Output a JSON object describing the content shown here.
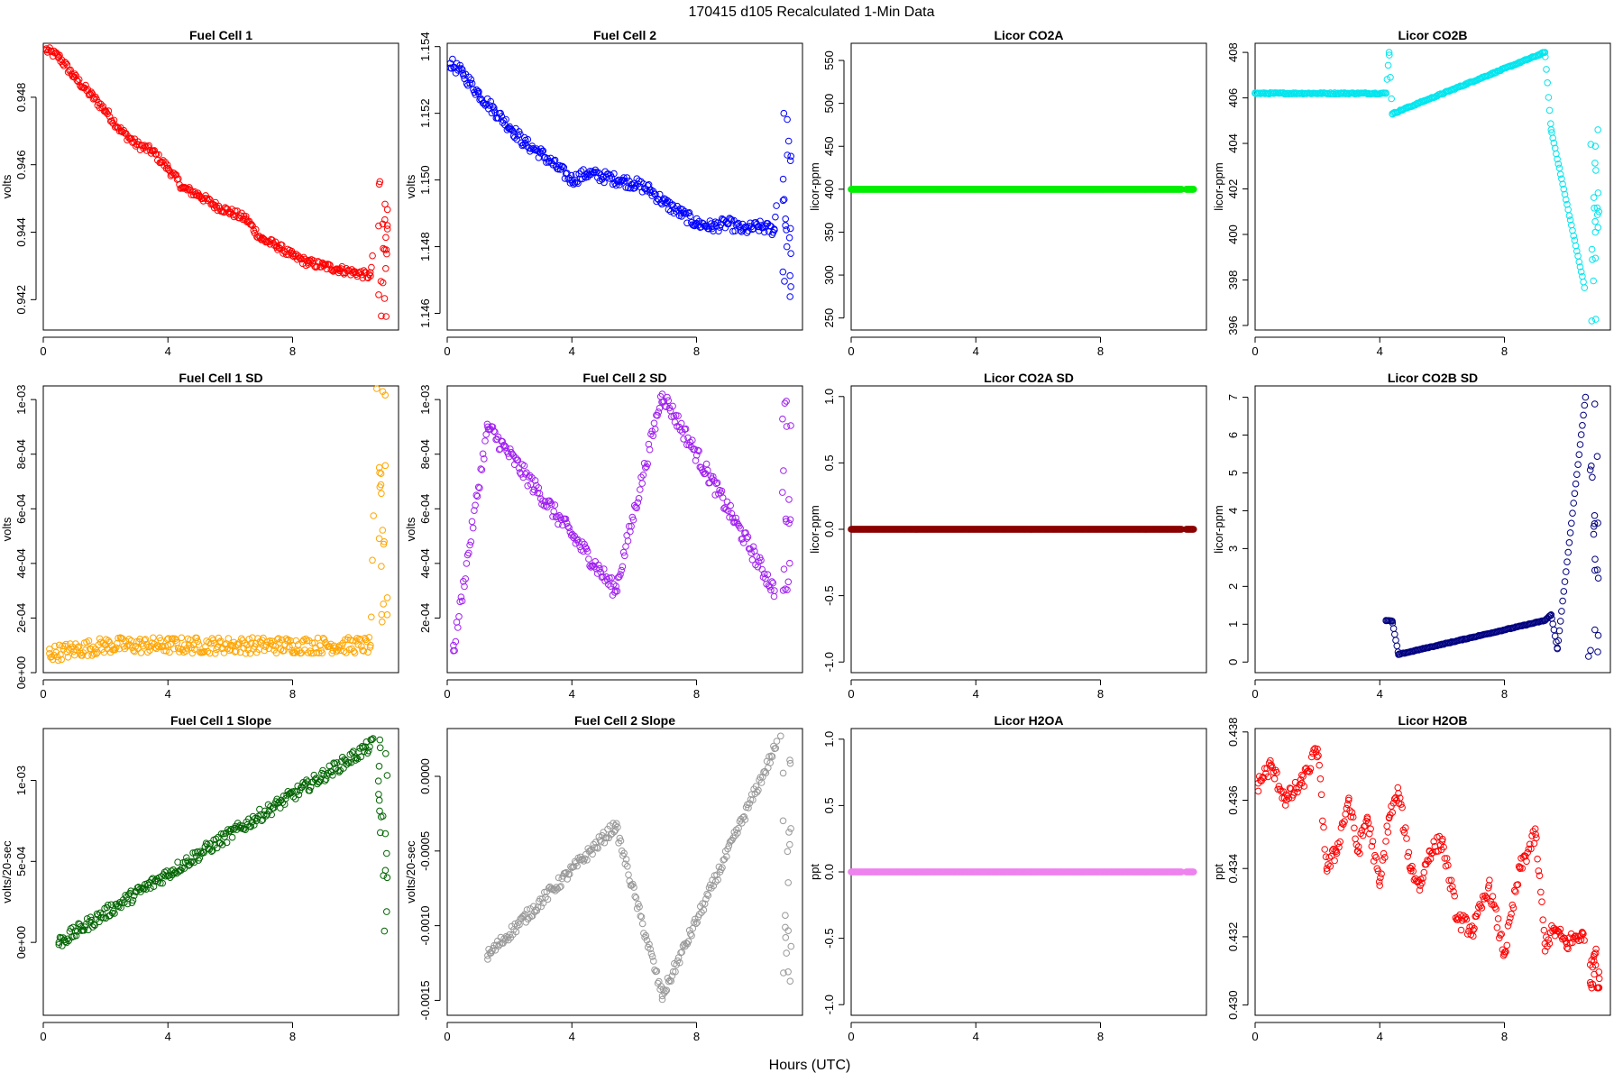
{
  "title": "170415   d105   Recalculated 1-Min Data",
  "xlabel": "Hours (UTC)",
  "chart_data": [
    {
      "type": "scatter",
      "title": "Fuel Cell 1",
      "ylabel": "volts",
      "color": "#ff0000",
      "xlim": [
        0,
        11.4
      ],
      "ylim": [
        0.9411,
        0.9496
      ],
      "xticks": [
        0,
        4,
        8
      ],
      "xticklabels": [
        "0",
        "4",
        "8"
      ],
      "yticks": [
        0.942,
        0.944,
        0.946,
        0.948
      ],
      "yticklabels": [
        "0.942",
        "0.944",
        "0.946",
        "0.948"
      ],
      "x": [
        0.1,
        0.5,
        1.0,
        1.5,
        2.0,
        2.5,
        3.0,
        3.5,
        4.0,
        4.5,
        5.0,
        5.5,
        6.0,
        6.5,
        7.0,
        7.5,
        8.0,
        8.5,
        9.0,
        9.5,
        10.0,
        10.5,
        10.8,
        10.9,
        11.0
      ],
      "y": [
        0.9494,
        0.9492,
        0.9486,
        0.9481,
        0.9476,
        0.947,
        0.9466,
        0.9464,
        0.9459,
        0.9453,
        0.9451,
        0.9448,
        0.9446,
        0.9444,
        0.9438,
        0.9436,
        0.9433,
        0.9431,
        0.943,
        0.9429,
        0.9428,
        0.9427,
        0.9455,
        0.9425,
        0.9415
      ],
      "series_pattern": "dense",
      "noise": 0.00012
    },
    {
      "type": "scatter",
      "title": "Fuel Cell 2",
      "ylabel": "volts",
      "color": "#0000ff",
      "xlim": [
        0,
        11.4
      ],
      "ylim": [
        1.1455,
        1.1541
      ],
      "xticks": [
        0,
        4,
        8
      ],
      "xticklabels": [
        "0",
        "4",
        "8"
      ],
      "yticks": [
        1.146,
        1.148,
        1.15,
        1.152,
        1.154
      ],
      "yticklabels": [
        "1.146",
        "1.148",
        "1.150",
        "1.152",
        "1.154"
      ],
      "x": [
        0.1,
        0.5,
        1.0,
        1.5,
        2.0,
        2.5,
        3.0,
        3.5,
        4.0,
        4.5,
        5.0,
        5.5,
        6.0,
        6.5,
        7.0,
        7.5,
        8.0,
        8.5,
        9.0,
        9.5,
        10.0,
        10.5,
        10.8,
        10.9,
        11.0
      ],
      "y": [
        1.1535,
        1.1532,
        1.1526,
        1.1521,
        1.1516,
        1.1511,
        1.1508,
        1.1504,
        1.15,
        1.1502,
        1.1501,
        1.15,
        1.1499,
        1.1497,
        1.1493,
        1.149,
        1.1487,
        1.1486,
        1.1487,
        1.1485,
        1.1486,
        1.1485,
        1.152,
        1.148,
        1.1465
      ],
      "noise": 0.00018
    },
    {
      "type": "scatter",
      "title": "Licor CO2A",
      "ylabel": "licor-ppm",
      "color": "#00ee00",
      "xlim": [
        0,
        11.4
      ],
      "ylim": [
        236,
        570
      ],
      "xticks": [
        0,
        4,
        8
      ],
      "xticklabels": [
        "0",
        "4",
        "8"
      ],
      "yticks": [
        250,
        300,
        350,
        400,
        450,
        500,
        550
      ],
      "yticklabels": [
        "250",
        "300",
        "350",
        "400",
        "450",
        "500",
        "550"
      ],
      "x": [
        0,
        11.0
      ],
      "y": [
        400,
        400
      ],
      "noise": 0
    },
    {
      "type": "scatter",
      "title": "Licor CO2B",
      "ylabel": "licor-ppm",
      "color": "#00e5ee",
      "xlim": [
        0,
        11.4
      ],
      "ylim": [
        395.8,
        408.4
      ],
      "xticks": [
        0,
        4,
        8
      ],
      "xticklabels": [
        "0",
        "4",
        "8"
      ],
      "yticks": [
        396,
        398,
        400,
        402,
        404,
        406,
        408
      ],
      "yticklabels": [
        "396",
        "398",
        "400",
        "402",
        "404",
        "406",
        "408"
      ],
      "x": [
        0,
        4.2,
        4.3,
        4.4,
        9.3,
        9.5,
        10.8,
        11.0
      ],
      "y": [
        406.2,
        406.2,
        408.0,
        405.3,
        408.0,
        404.6,
        396.2,
        404.6
      ],
      "noise": 0.03
    },
    {
      "type": "scatter",
      "title": "Fuel Cell 1 SD",
      "ylabel": "volts",
      "color": "#ffa500",
      "xlim": [
        0,
        11.4
      ],
      "ylim": [
        0,
        0.00105
      ],
      "xticks": [
        0,
        4,
        8
      ],
      "xticklabels": [
        "0",
        "4",
        "8"
      ],
      "yticks": [
        0,
        0.0002,
        0.0004,
        0.0006,
        0.0008,
        0.001
      ],
      "yticklabels": [
        "0e+00",
        "2e-04",
        "4e-04",
        "6e-04",
        "8e-04",
        "1e-03"
      ],
      "x": [
        0.2,
        2.0,
        4.0,
        6.0,
        8.0,
        10.5,
        10.7,
        10.8
      ],
      "y": [
        7e-05,
        0.0001,
        0.0001,
        0.0001,
        0.0001,
        0.0001,
        0.00104,
        0.00068
      ],
      "noise": 3e-05
    },
    {
      "type": "scatter",
      "title": "Fuel Cell 2 SD",
      "ylabel": "volts",
      "color": "#a020f0",
      "xlim": [
        0,
        11.4
      ],
      "ylim": [
        0,
        0.00105
      ],
      "xticks": [
        0,
        4,
        8
      ],
      "xticklabels": [
        "0",
        "4",
        "8"
      ],
      "yticks": [
        0.0002,
        0.0004,
        0.0006,
        0.0008,
        0.001
      ],
      "yticklabels": [
        "2e-04",
        "4e-04",
        "6e-04",
        "8e-04",
        "1e-03"
      ],
      "x": [
        0.2,
        1.3,
        5.4,
        6.9,
        10.5
      ],
      "y": [
        8e-05,
        0.0009,
        0.0003,
        0.00102,
        0.0003
      ],
      "noise": 3e-05
    },
    {
      "type": "scatter",
      "title": "Licor CO2A SD",
      "ylabel": "licor-ppm",
      "color": "#8b0000",
      "xlim": [
        0,
        11.4
      ],
      "ylim": [
        -1.08,
        1.08
      ],
      "xticks": [
        0,
        4,
        8
      ],
      "xticklabels": [
        "0",
        "4",
        "8"
      ],
      "yticks": [
        -1.0,
        -0.5,
        0.0,
        0.5,
        1.0
      ],
      "yticklabels": [
        "-1.0",
        "-0.5",
        "0.0",
        "0.5",
        "1.0"
      ],
      "x": [
        0,
        11.0
      ],
      "y": [
        0,
        0
      ],
      "noise": 0
    },
    {
      "type": "scatter",
      "title": "Licor CO2B SD",
      "ylabel": "licor-ppm",
      "color": "#000080",
      "xlim": [
        0,
        11.4
      ],
      "ylim": [
        -0.28,
        7.3
      ],
      "xticks": [
        0,
        4,
        8
      ],
      "xticklabels": [
        "0",
        "4",
        "8"
      ],
      "yticks": [
        0,
        1,
        2,
        3,
        4,
        5,
        6,
        7
      ],
      "yticklabels": [
        "0",
        "1",
        "2",
        "3",
        "4",
        "5",
        "6",
        "7"
      ],
      "x": [
        4.2,
        4.4,
        4.6,
        9.3,
        9.5,
        9.7,
        10.6,
        10.7
      ],
      "y": [
        1.1,
        1.08,
        0.2,
        1.1,
        1.25,
        0.35,
        7.0,
        0.15
      ],
      "noise": 0.01
    },
    {
      "type": "scatter",
      "title": "Fuel Cell 1 Slope",
      "ylabel": "volts/20-sec",
      "color": "#006400",
      "xlim": [
        0,
        11.4
      ],
      "ylim": [
        -0.00045,
        0.00132
      ],
      "xticks": [
        0,
        4,
        8
      ],
      "xticklabels": [
        "0",
        "4",
        "8"
      ],
      "yticks": [
        0,
        0.0005,
        0.001
      ],
      "yticklabels": [
        "0e+00",
        "5e-04",
        "1e-03"
      ],
      "x": [
        0.5,
        10.8
      ],
      "y": [
        0,
        0.00125
      ],
      "noise": 4e-05
    },
    {
      "type": "scatter",
      "title": "Fuel Cell 2 Slope",
      "ylabel": "volts/20-sec",
      "color": "#999999",
      "xlim": [
        0,
        11.4
      ],
      "ylim": [
        -0.0016,
        0.00032
      ],
      "xticks": [
        0,
        4,
        8
      ],
      "xticklabels": [
        "0",
        "4",
        "8"
      ],
      "yticks": [
        -0.0015,
        -0.001,
        -0.0005,
        0.0
      ],
      "yticklabels": [
        "-0.0015",
        "-0.0010",
        "-0.0005",
        "0.0000"
      ],
      "x": [
        1.3,
        5.4,
        6.9,
        10.7
      ],
      "y": [
        -0.0012,
        -0.00033,
        -0.00147,
        0.00027
      ],
      "noise": 4e-05
    },
    {
      "type": "scatter",
      "title": "Licor H2OA",
      "ylabel": "ppt",
      "color": "#ee82ee",
      "xlim": [
        0,
        11.4
      ],
      "ylim": [
        -1.08,
        1.08
      ],
      "xticks": [
        0,
        4,
        8
      ],
      "xticklabels": [
        "0",
        "4",
        "8"
      ],
      "yticks": [
        -1.0,
        -0.5,
        0.0,
        0.5,
        1.0
      ],
      "yticklabels": [
        "-1.0",
        "-0.5",
        "0.0",
        "0.5",
        "1.0"
      ],
      "x": [
        0,
        11.0
      ],
      "y": [
        0,
        0
      ],
      "noise": 0
    },
    {
      "type": "scatter",
      "title": "Licor H2OB",
      "ylabel": "ppt",
      "color": "#ff0000",
      "xlim": [
        0,
        11.4
      ],
      "ylim": [
        0.4297,
        0.4381
      ],
      "xticks": [
        0,
        4,
        8
      ],
      "xticklabels": [
        "0",
        "4",
        "8"
      ],
      "yticks": [
        0.43,
        0.432,
        0.434,
        0.436,
        0.438
      ],
      "yticklabels": [
        "0.430",
        "0.432",
        "0.434",
        "0.436",
        "0.438"
      ],
      "x": [
        0.1,
        0.5,
        1.0,
        1.5,
        2.0,
        2.3,
        2.6,
        3.0,
        3.3,
        3.6,
        4.0,
        4.3,
        4.6,
        5.0,
        5.3,
        5.6,
        6.0,
        6.5,
        7.0,
        7.5,
        8.0,
        8.5,
        9.0,
        9.3,
        9.6,
        10.0,
        10.5,
        10.8,
        11.0
      ],
      "y": [
        0.4365,
        0.437,
        0.436,
        0.4365,
        0.4375,
        0.434,
        0.4345,
        0.436,
        0.4345,
        0.4355,
        0.4335,
        0.4355,
        0.4362,
        0.434,
        0.4335,
        0.4345,
        0.4348,
        0.4325,
        0.4322,
        0.4335,
        0.4315,
        0.434,
        0.435,
        0.4318,
        0.4322,
        0.4318,
        0.4321,
        0.4305,
        0.4305
      ],
      "noise": 0.00025
    }
  ]
}
